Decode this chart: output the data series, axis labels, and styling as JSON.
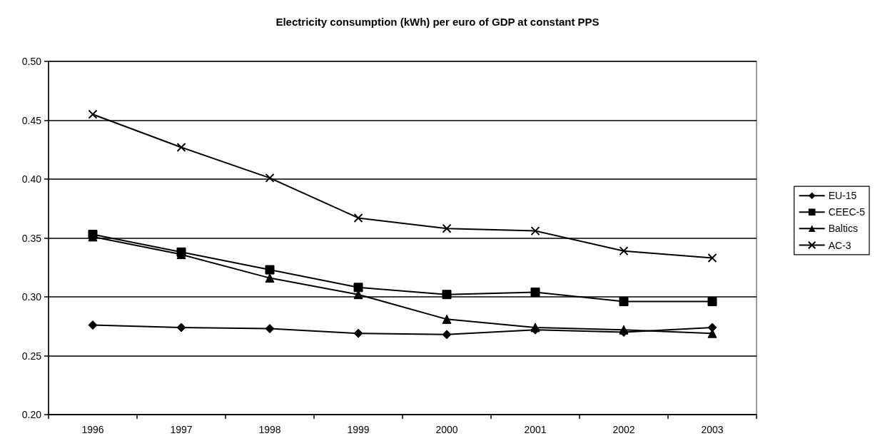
{
  "chart_data": {
    "type": "line",
    "title": "Electricity consumption (kWh) per euro of GDP at constant PPS",
    "categories": [
      "1996",
      "1997",
      "1998",
      "1999",
      "2000",
      "2001",
      "2002",
      "2003"
    ],
    "series": [
      {
        "name": "EU-15",
        "color": "#000000",
        "marker": "diamond",
        "values": [
          0.276,
          0.274,
          0.273,
          0.269,
          0.268,
          0.272,
          0.27,
          0.274
        ]
      },
      {
        "name": "CEEC-5",
        "color": "#000000",
        "marker": "square",
        "values": [
          0.353,
          0.338,
          0.323,
          0.308,
          0.302,
          0.304,
          0.296,
          0.296
        ]
      },
      {
        "name": "Baltics",
        "color": "#000000",
        "marker": "triangle",
        "values": [
          0.351,
          0.336,
          0.316,
          0.302,
          0.281,
          0.274,
          0.272,
          0.269
        ]
      },
      {
        "name": "AC-3",
        "color": "#000000",
        "marker": "cross",
        "values": [
          0.455,
          0.427,
          0.401,
          0.367,
          0.358,
          0.356,
          0.339,
          0.333
        ]
      }
    ],
    "ylim": [
      0.2,
      0.5
    ],
    "yticks": [
      {
        "value": 0.2,
        "label": "0.20"
      },
      0.25,
      {
        "value": 0.3,
        "label": "0.30"
      },
      0.35,
      {
        "value": 0.4,
        "label": "0.40"
      },
      0.45,
      {
        "value": 0.5,
        "label": "0.50"
      }
    ],
    "grid": "y",
    "legend": "right",
    "line_style": "solid"
  }
}
